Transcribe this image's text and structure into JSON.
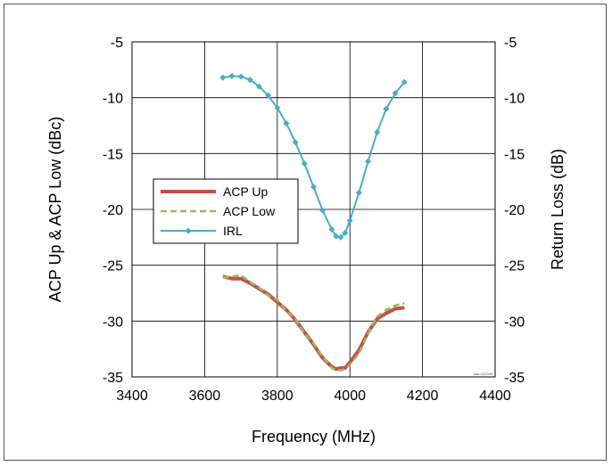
{
  "chart_data": {
    "type": "line",
    "xlabel": "Frequency (MHz)",
    "ylabel_left": "ACP Up & ACP Low (dBc)",
    "ylabel_right": "Return Loss (dB)",
    "xlim": [
      3400,
      4400
    ],
    "x_ticks": [
      3400,
      3600,
      3800,
      4000,
      4200,
      4400
    ],
    "ylim_left": [
      -35,
      -5
    ],
    "ylim_right": [
      -35,
      -5
    ],
    "y_ticks": [
      -5,
      -10,
      -15,
      -20,
      -25,
      -30,
      -35
    ],
    "grid": true,
    "legend_position": "left-middle",
    "watermark": "aaa-012345",
    "series": [
      {
        "name": "ACP Up",
        "axis": "left",
        "color": "#c0504d",
        "style": "solid",
        "x": [
          3650,
          3675,
          3700,
          3725,
          3750,
          3775,
          3800,
          3825,
          3850,
          3875,
          3900,
          3925,
          3950,
          3962,
          3975,
          3987,
          4000,
          4025,
          4050,
          4075,
          4100,
          4125,
          4150
        ],
        "y": [
          -26.0,
          -26.2,
          -26.2,
          -26.6,
          -27.1,
          -27.6,
          -28.3,
          -29.0,
          -29.9,
          -31.0,
          -32.1,
          -33.3,
          -34.1,
          -34.3,
          -34.2,
          -34.2,
          -33.7,
          -32.6,
          -31.0,
          -29.8,
          -29.3,
          -28.9,
          -28.8
        ]
      },
      {
        "name": "ACP Low",
        "axis": "left",
        "color": "#9bbb59",
        "style": "dashed",
        "x": [
          3650,
          3675,
          3700,
          3725,
          3750,
          3775,
          3800,
          3825,
          3850,
          3875,
          3900,
          3925,
          3950,
          3962,
          3975,
          3987,
          4000,
          4025,
          4050,
          4075,
          4100,
          4125,
          4150
        ],
        "y": [
          -26.1,
          -26.0,
          -25.9,
          -26.5,
          -27.0,
          -27.7,
          -28.1,
          -29.1,
          -29.8,
          -31.1,
          -32.0,
          -33.2,
          -34.2,
          -34.4,
          -34.4,
          -34.3,
          -33.9,
          -32.9,
          -31.1,
          -29.6,
          -29.0,
          -28.6,
          -28.4
        ]
      },
      {
        "name": "IRL",
        "axis": "right",
        "color": "#4bacc6",
        "style": "solid-diamond",
        "x": [
          3650,
          3675,
          3700,
          3725,
          3750,
          3775,
          3800,
          3825,
          3850,
          3875,
          3900,
          3925,
          3950,
          3962,
          3975,
          3987,
          4000,
          4025,
          4050,
          4075,
          4100,
          4125,
          4150
        ],
        "y": [
          -8.2,
          -8.05,
          -8.1,
          -8.4,
          -9.0,
          -9.8,
          -10.9,
          -12.3,
          -14.0,
          -15.9,
          -18.0,
          -20.1,
          -21.8,
          -22.4,
          -22.5,
          -22.1,
          -21.0,
          -18.5,
          -15.7,
          -13.1,
          -11.0,
          -9.6,
          -8.6
        ]
      }
    ]
  }
}
